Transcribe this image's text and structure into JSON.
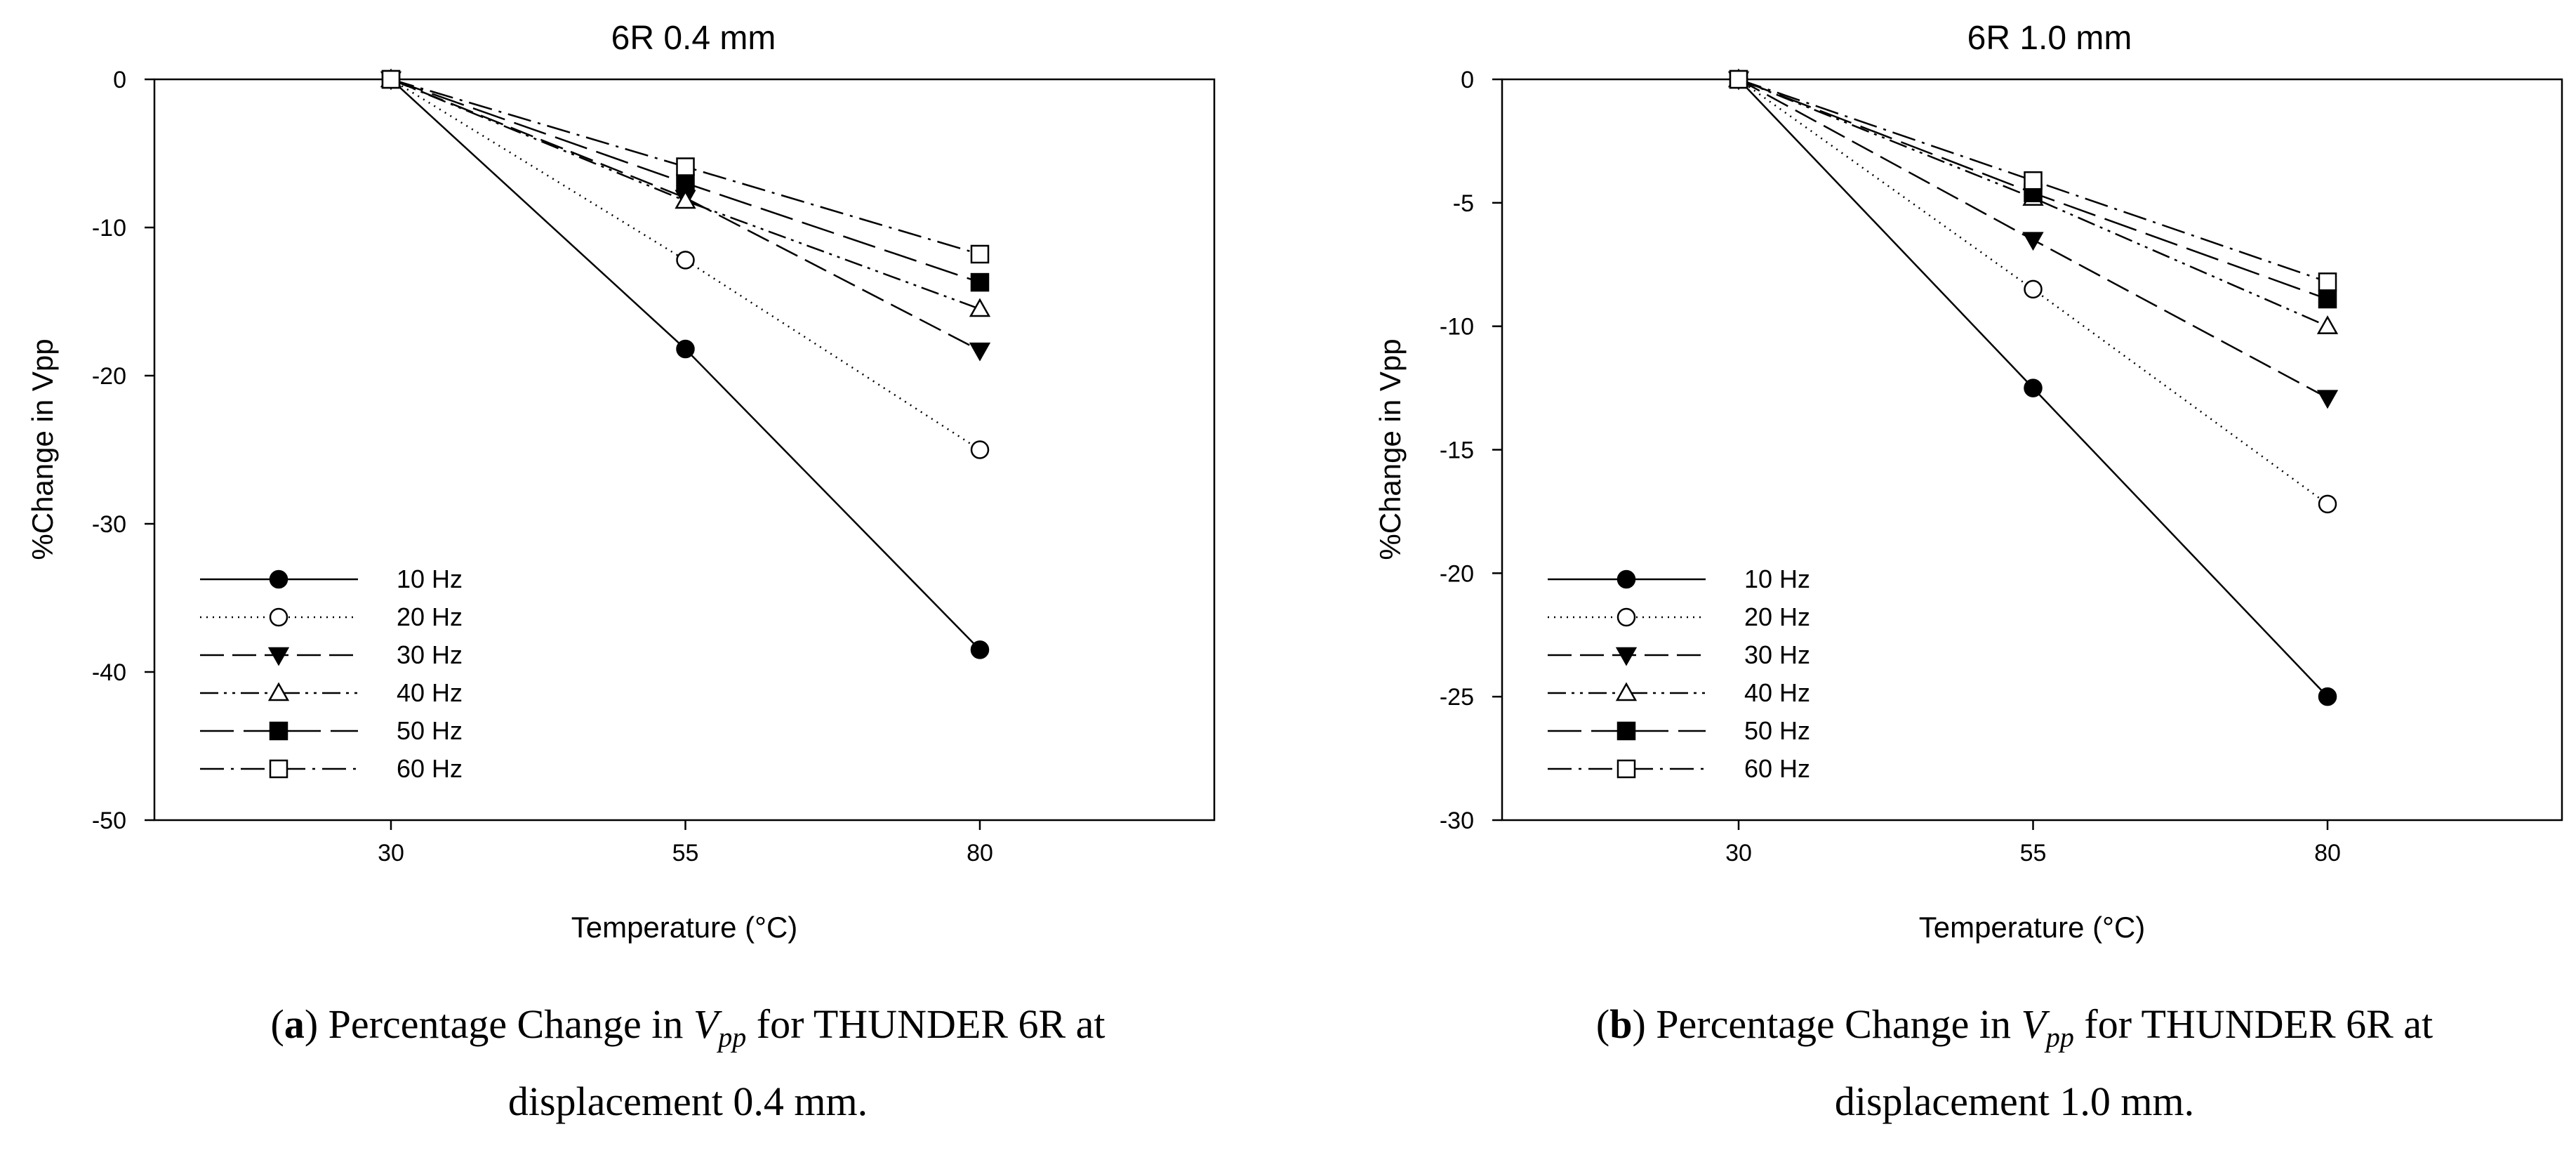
{
  "chart_data": [
    {
      "type": "line",
      "title": "6R 0.4 mm",
      "xlabel": "Temperature (°C)",
      "ylabel": "%Change in Vpp",
      "categories": [
        "30",
        "55",
        "80"
      ],
      "x": [
        30,
        55,
        80
      ],
      "ylim": [
        -50,
        0
      ],
      "yticks": [
        0,
        -10,
        -20,
        -30,
        -40,
        -50
      ],
      "yticks_label": [
        "0",
        "-10",
        "-20",
        "-30",
        "-40",
        "-50"
      ],
      "legend_position": "bottom-left",
      "series": [
        {
          "name": "10 Hz",
          "values": [
            0,
            -18.2,
            -38.5
          ]
        },
        {
          "name": "20 Hz",
          "values": [
            0,
            -12.2,
            -25.0
          ]
        },
        {
          "name": "30 Hz",
          "values": [
            0,
            -8.0,
            -18.3
          ]
        },
        {
          "name": "40 Hz",
          "values": [
            0,
            -8.2,
            -15.5
          ]
        },
        {
          "name": "50 Hz",
          "values": [
            0,
            -7.0,
            -13.7
          ]
        },
        {
          "name": "60 Hz",
          "values": [
            0,
            -5.9,
            -11.8
          ]
        }
      ]
    },
    {
      "type": "line",
      "title": "6R 1.0 mm",
      "xlabel": "Temperature (°C)",
      "ylabel": "%Change in Vpp",
      "categories": [
        "30",
        "55",
        "80"
      ],
      "x": [
        30,
        55,
        80
      ],
      "ylim": [
        -30,
        0
      ],
      "yticks": [
        0,
        -5,
        -10,
        -15,
        -20,
        -25,
        -30
      ],
      "yticks_label": [
        "0",
        "-5",
        "-10",
        "-15",
        "-20",
        "-25",
        "-30"
      ],
      "legend_position": "bottom-left",
      "series": [
        {
          "name": "10 Hz",
          "values": [
            0,
            -12.5,
            -25.0
          ]
        },
        {
          "name": "20 Hz",
          "values": [
            0,
            -8.5,
            -17.2
          ]
        },
        {
          "name": "30 Hz",
          "values": [
            0,
            -6.5,
            -12.9
          ]
        },
        {
          "name": "40 Hz",
          "values": [
            0,
            -4.8,
            -10.0
          ]
        },
        {
          "name": "50 Hz",
          "values": [
            0,
            -4.6,
            -8.9
          ]
        },
        {
          "name": "60 Hz",
          "values": [
            0,
            -4.1,
            -8.2
          ]
        }
      ]
    }
  ],
  "captions": [
    {
      "label": "a",
      "text_before": "Percentage Change in ",
      "var_base": "V",
      "var_sub": "pp",
      "text_after": " for THUNDER 6R at",
      "line2": "displacement 0.4 mm."
    },
    {
      "label": "b",
      "text_before": "Percentage Change in ",
      "var_base": "V",
      "var_sub": "pp",
      "text_after": " for THUNDER 6R at",
      "line2": "displacement 1.0 mm."
    }
  ]
}
